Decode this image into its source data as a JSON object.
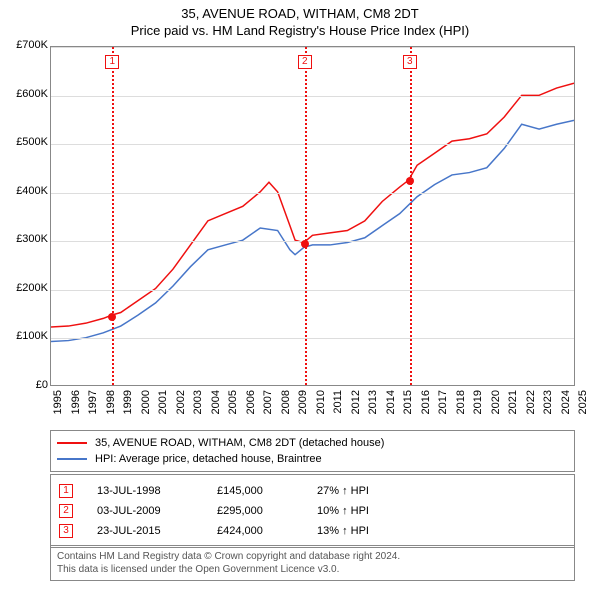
{
  "title_line1": "35, AVENUE ROAD, WITHAM, CM8 2DT",
  "title_line2": "Price paid vs. HM Land Registry's House Price Index (HPI)",
  "chart": {
    "type": "line",
    "background_color": "#ffffff",
    "grid_color": "#dddddd",
    "border_color": "#888888",
    "ylim": [
      0,
      700000
    ],
    "ytick_step": 100000,
    "yticks": [
      "£0",
      "£100K",
      "£200K",
      "£300K",
      "£400K",
      "£500K",
      "£600K",
      "£700K"
    ],
    "xlim": [
      1995,
      2025
    ],
    "xticks": [
      "1995",
      "1996",
      "1997",
      "1998",
      "1999",
      "2000",
      "2001",
      "2002",
      "2003",
      "2004",
      "2005",
      "2006",
      "2007",
      "2008",
      "2009",
      "2010",
      "2011",
      "2012",
      "2013",
      "2014",
      "2015",
      "2016",
      "2017",
      "2018",
      "2019",
      "2020",
      "2021",
      "2022",
      "2023",
      "2024",
      "2025"
    ],
    "series": [
      {
        "name": "price_paid",
        "label": "35, AVENUE ROAD, WITHAM, CM8 2DT (detached house)",
        "color": "#ef1010",
        "line_width": 1.5,
        "data": [
          [
            1995,
            120000
          ],
          [
            1996,
            122000
          ],
          [
            1997,
            128000
          ],
          [
            1998,
            138000
          ],
          [
            1998.5,
            145000
          ],
          [
            1999,
            150000
          ],
          [
            2000,
            175000
          ],
          [
            2001,
            200000
          ],
          [
            2002,
            240000
          ],
          [
            2003,
            290000
          ],
          [
            2004,
            340000
          ],
          [
            2005,
            355000
          ],
          [
            2006,
            370000
          ],
          [
            2007,
            400000
          ],
          [
            2007.5,
            420000
          ],
          [
            2008,
            400000
          ],
          [
            2008.7,
            330000
          ],
          [
            2009,
            300000
          ],
          [
            2009.5,
            295000
          ],
          [
            2010,
            310000
          ],
          [
            2011,
            315000
          ],
          [
            2012,
            320000
          ],
          [
            2013,
            340000
          ],
          [
            2014,
            380000
          ],
          [
            2015,
            410000
          ],
          [
            2015.5,
            424000
          ],
          [
            2016,
            455000
          ],
          [
            2017,
            480000
          ],
          [
            2018,
            505000
          ],
          [
            2019,
            510000
          ],
          [
            2020,
            520000
          ],
          [
            2021,
            555000
          ],
          [
            2022,
            600000
          ],
          [
            2023,
            600000
          ],
          [
            2024,
            615000
          ],
          [
            2025,
            625000
          ]
        ]
      },
      {
        "name": "hpi",
        "label": "HPI: Average price, detached house, Braintree",
        "color": "#4776c9",
        "line_width": 1.5,
        "data": [
          [
            1995,
            90000
          ],
          [
            1996,
            92000
          ],
          [
            1997,
            98000
          ],
          [
            1998,
            108000
          ],
          [
            1999,
            122000
          ],
          [
            2000,
            145000
          ],
          [
            2001,
            170000
          ],
          [
            2002,
            205000
          ],
          [
            2003,
            245000
          ],
          [
            2004,
            280000
          ],
          [
            2005,
            290000
          ],
          [
            2006,
            300000
          ],
          [
            2007,
            325000
          ],
          [
            2008,
            320000
          ],
          [
            2008.7,
            280000
          ],
          [
            2009,
            270000
          ],
          [
            2009.5,
            285000
          ],
          [
            2010,
            290000
          ],
          [
            2011,
            290000
          ],
          [
            2012,
            295000
          ],
          [
            2013,
            305000
          ],
          [
            2014,
            330000
          ],
          [
            2015,
            355000
          ],
          [
            2016,
            390000
          ],
          [
            2017,
            415000
          ],
          [
            2018,
            435000
          ],
          [
            2019,
            440000
          ],
          [
            2020,
            450000
          ],
          [
            2021,
            490000
          ],
          [
            2022,
            540000
          ],
          [
            2023,
            530000
          ],
          [
            2024,
            540000
          ],
          [
            2025,
            548000
          ]
        ]
      }
    ],
    "markers": [
      {
        "n": "1",
        "x": 1998.5,
        "y": 145000
      },
      {
        "n": "2",
        "x": 2009.5,
        "y": 295000
      },
      {
        "n": "3",
        "x": 2015.5,
        "y": 424000
      }
    ]
  },
  "legend": {
    "items": [
      {
        "color": "#ef1010",
        "label": "35, AVENUE ROAD, WITHAM, CM8 2DT (detached house)"
      },
      {
        "color": "#4776c9",
        "label": "HPI: Average price, detached house, Braintree"
      }
    ]
  },
  "events": [
    {
      "n": "1",
      "date": "13-JUL-1998",
      "price": "£145,000",
      "pct": "27% ↑ HPI"
    },
    {
      "n": "2",
      "date": "03-JUL-2009",
      "price": "£295,000",
      "pct": "10% ↑ HPI"
    },
    {
      "n": "3",
      "date": "23-JUL-2015",
      "price": "£424,000",
      "pct": "13% ↑ HPI"
    }
  ],
  "attribution_line1": "Contains HM Land Registry data © Crown copyright and database right 2024.",
  "attribution_line2": "This data is licensed under the Open Government Licence v3.0."
}
